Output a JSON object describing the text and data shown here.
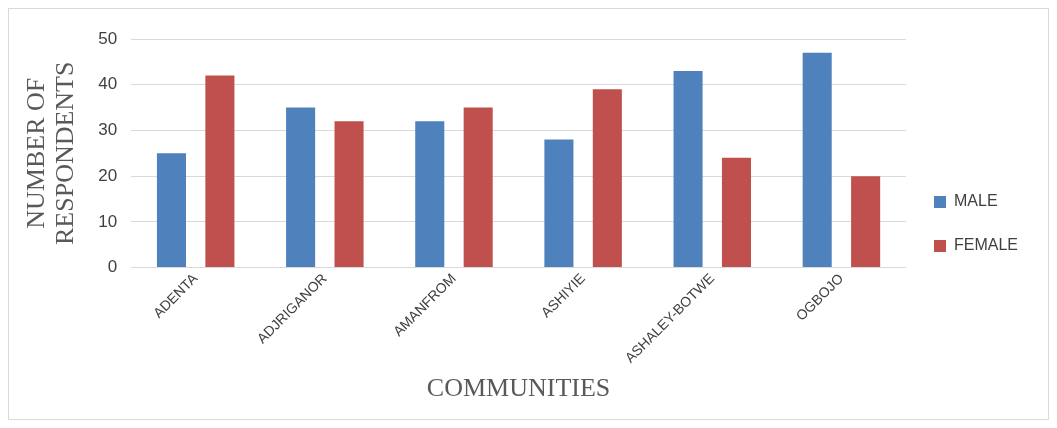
{
  "chart_data": {
    "type": "bar",
    "xlabel": "COMMUNITIES",
    "ylabel": "NUMBER OF RESPONDENTS",
    "categories": [
      "ADENTA",
      "ADJRIGANOR",
      "AMANFROM",
      "ASHIYIE",
      "ASHALEY-BOTWE",
      "OGBOJO"
    ],
    "series": [
      {
        "name": "MALE",
        "color": "#4f81bd",
        "values": [
          25,
          35,
          32,
          28,
          43,
          47
        ]
      },
      {
        "name": "FEMALE",
        "color": "#c0504d",
        "values": [
          42,
          32,
          35,
          39,
          24,
          20
        ]
      }
    ],
    "ylim": [
      0,
      50
    ],
    "yticks": [
      0,
      10,
      20,
      30,
      40,
      50
    ],
    "grid": "y",
    "legend": "right"
  }
}
